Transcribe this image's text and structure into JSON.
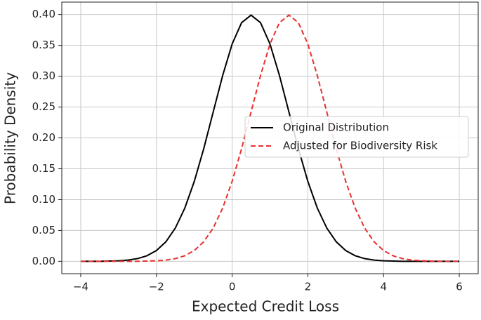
{
  "chart_data": {
    "type": "line",
    "xlabel": "Expected Credit Loss",
    "ylabel": "Probability Density",
    "x": [
      -4,
      -3.75,
      -3.5,
      -3.25,
      -3,
      -2.75,
      -2.5,
      -2.25,
      -2,
      -1.75,
      -1.5,
      -1.25,
      -1,
      -0.75,
      -0.5,
      -0.25,
      0,
      0.25,
      0.5,
      0.75,
      1,
      1.25,
      1.5,
      1.75,
      2,
      2.25,
      2.5,
      2.75,
      3,
      3.25,
      3.5,
      3.75,
      4,
      4.25,
      4.5,
      4.75,
      5,
      5.25,
      5.5,
      5.75,
      6
    ],
    "series": [
      {
        "name": "Original Distribution",
        "color": "#000000",
        "dash": false,
        "values": [
          0,
          0,
          0.0001,
          0.0004,
          0.0009,
          0.002,
          0.0044,
          0.0091,
          0.0175,
          0.0317,
          0.054,
          0.0863,
          0.1295,
          0.1826,
          0.242,
          0.3011,
          0.3521,
          0.3867,
          0.3989,
          0.3867,
          0.3521,
          0.3011,
          0.242,
          0.1826,
          0.1295,
          0.0863,
          0.054,
          0.0317,
          0.0175,
          0.0091,
          0.0044,
          0.002,
          0.0009,
          0.0004,
          0.0001,
          0,
          0,
          0,
          0,
          0,
          0
        ]
      },
      {
        "name": "Adjusted for Biodiversity Risk",
        "color": "#e8302e",
        "dash": true,
        "values": [
          0,
          0,
          0,
          0,
          0,
          0,
          0.0001,
          0.0004,
          0.0009,
          0.002,
          0.0044,
          0.0091,
          0.0175,
          0.0317,
          0.054,
          0.0863,
          0.1295,
          0.1826,
          0.242,
          0.3011,
          0.3521,
          0.3867,
          0.3989,
          0.3867,
          0.3521,
          0.3011,
          0.242,
          0.1826,
          0.1295,
          0.0863,
          0.054,
          0.0317,
          0.0175,
          0.0091,
          0.0044,
          0.002,
          0.0009,
          0.0004,
          0.0001,
          0,
          0
        ]
      }
    ],
    "xlim": [
      -4.5,
      6.5
    ],
    "ylim": [
      -0.02,
      0.42
    ],
    "xticks": [
      {
        "value": -4,
        "label": "−4"
      },
      {
        "value": -2,
        "label": "−2"
      },
      0,
      2,
      4,
      6
    ],
    "yticks": [
      {
        "value": 0,
        "label": "0.00"
      },
      {
        "value": 0.05,
        "label": "0.05"
      },
      {
        "value": 0.1,
        "label": "0.10"
      },
      {
        "value": 0.15,
        "label": "0.15"
      },
      {
        "value": 0.2,
        "label": "0.20"
      },
      {
        "value": 0.25,
        "label": "0.25"
      },
      {
        "value": 0.3,
        "label": "0.30"
      },
      {
        "value": 0.35,
        "label": "0.35"
      },
      {
        "value": 0.4,
        "label": "0.40"
      }
    ],
    "grid": true,
    "legend": "center right"
  }
}
